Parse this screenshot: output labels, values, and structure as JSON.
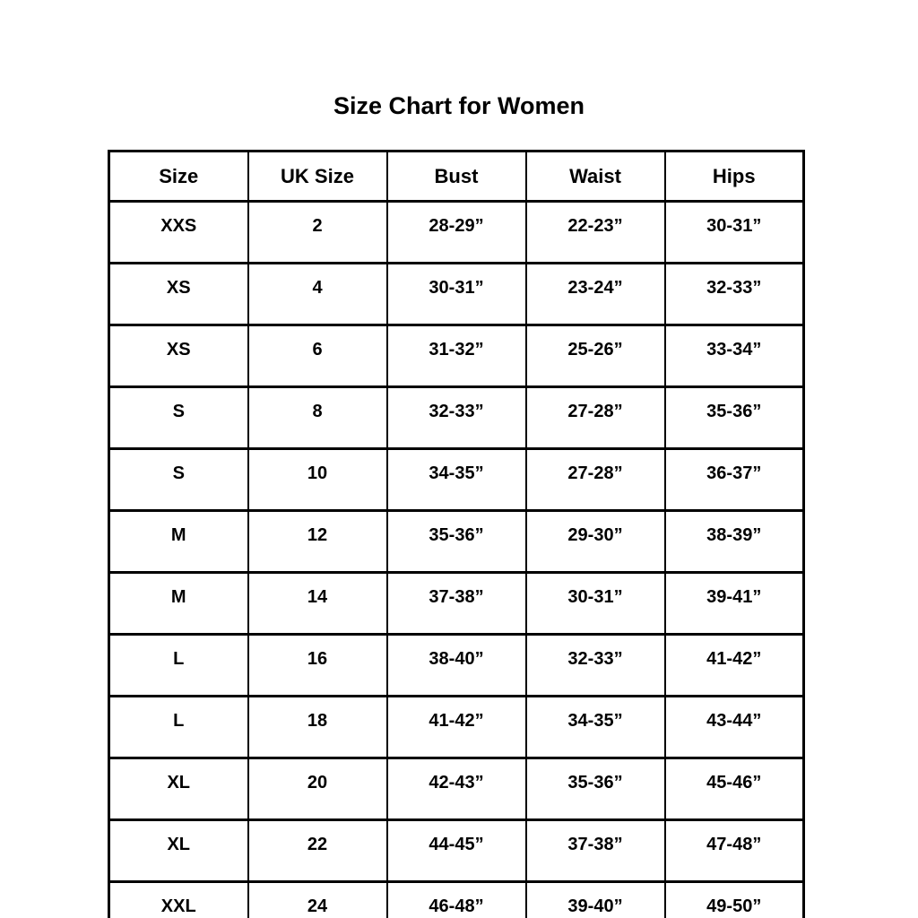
{
  "page": {
    "title": "Size Chart for Women"
  },
  "colors": {
    "background": "#ffffff",
    "text": "#000000",
    "border": "#000000"
  },
  "chart_data": {
    "type": "table",
    "title": "Size Chart for Women",
    "columns": [
      "Size",
      "UK Size",
      "Bust",
      "Waist",
      "Hips"
    ],
    "rows": [
      [
        "XXS",
        "2",
        "28-29”",
        "22-23”",
        "30-31”"
      ],
      [
        "XS",
        "4",
        "30-31”",
        "23-24”",
        "32-33”"
      ],
      [
        "XS",
        "6",
        "31-32”",
        "25-26”",
        "33-34”"
      ],
      [
        "S",
        "8",
        "32-33”",
        "27-28”",
        "35-36”"
      ],
      [
        "S",
        "10",
        "34-35”",
        "27-28”",
        "36-37”"
      ],
      [
        "M",
        "12",
        "35-36”",
        "29-30”",
        "38-39”"
      ],
      [
        "M",
        "14",
        "37-38”",
        "30-31”",
        "39-41”"
      ],
      [
        "L",
        "16",
        "38-40”",
        "32-33”",
        "41-42”"
      ],
      [
        "L",
        "18",
        "41-42”",
        "34-35”",
        "43-44”"
      ],
      [
        "XL",
        "20",
        "42-43”",
        "35-36”",
        "45-46”"
      ],
      [
        "XL",
        "22",
        "44-45”",
        "37-38”",
        "47-48”"
      ],
      [
        "XXL",
        "24",
        "46-48”",
        "39-40”",
        "49-50”"
      ]
    ]
  }
}
